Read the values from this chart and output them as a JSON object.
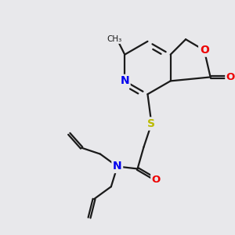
{
  "bg_color": "#e8e8eb",
  "bond_color": "#1a1a1a",
  "atom_colors": {
    "N": "#0000ee",
    "O": "#ee0000",
    "S": "#bbbb00",
    "C": "#1a1a1a"
  },
  "lw": 1.6,
  "dbl_sep": 3.0
}
